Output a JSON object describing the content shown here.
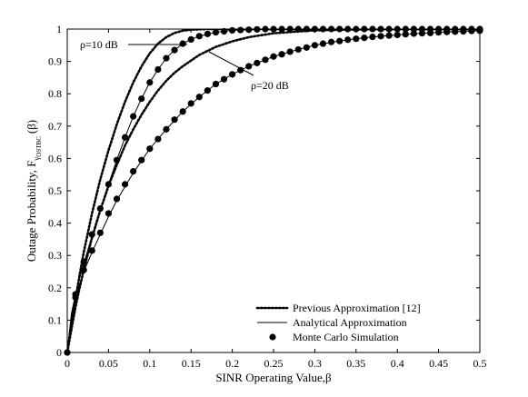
{
  "chart_data": {
    "type": "line",
    "xlabel": "SINR Operating Value,",
    "xlabel_symbol": "β",
    "ylabel": {
      "prefix": "Outage Probability, F",
      "sub_main": "γ",
      "sub_sub": "OSTBC",
      "suffix": "(β)"
    },
    "xlim": [
      0,
      0.5
    ],
    "ylim": [
      0,
      1
    ],
    "x_ticks": [
      0,
      0.05,
      0.1,
      0.15,
      0.2,
      0.25,
      0.3,
      0.35,
      0.4,
      0.45,
      0.5
    ],
    "x_tick_labels": [
      "0",
      "0.05",
      "0.1",
      "0.15",
      "0.2",
      "0.25",
      "0.3",
      "0.35",
      "0.4",
      "0.45",
      "0.5"
    ],
    "y_ticks": [
      0,
      0.1,
      0.2,
      0.3,
      0.4,
      0.5,
      0.6,
      0.7,
      0.8,
      0.9,
      1
    ],
    "y_tick_labels": [
      "0",
      "0.1",
      "0.2",
      "0.3",
      "0.4",
      "0.5",
      "0.6",
      "0.7",
      "0.8",
      "0.9",
      "1"
    ],
    "grid": false,
    "legend_position": "bottom-right",
    "legend": [
      {
        "label": "Previous Approximation [12]",
        "style": "dotted"
      },
      {
        "label": "Analytical Approximation",
        "style": "solid"
      },
      {
        "label": "Monte Carlo Simulation",
        "style": "markers"
      }
    ],
    "annotations": [
      {
        "text": "ρ=10 dB",
        "points_to": "left curve group"
      },
      {
        "text": "ρ=20 dB",
        "points_to": "right curve group"
      }
    ],
    "series": [
      {
        "style": "dotted",
        "group": "ρ=10 dB",
        "x": [
          0,
          0.005,
          0.01,
          0.015,
          0.02,
          0.03,
          0.04,
          0.05,
          0.06,
          0.07,
          0.08,
          0.09,
          0.1,
          0.11,
          0.12,
          0.13,
          0.14,
          0.15,
          0.17,
          0.2,
          0.25,
          0.3,
          0.4,
          0.5
        ],
        "y": [
          0,
          0.085,
          0.165,
          0.24,
          0.31,
          0.43,
          0.535,
          0.625,
          0.705,
          0.775,
          0.835,
          0.885,
          0.925,
          0.955,
          0.975,
          0.988,
          0.995,
          0.998,
          1,
          1,
          1,
          1,
          1,
          1
        ]
      },
      {
        "style": "dotted",
        "group": "ρ=20 dB",
        "x": [
          0,
          0.005,
          0.01,
          0.015,
          0.02,
          0.03,
          0.04,
          0.05,
          0.06,
          0.07,
          0.08,
          0.09,
          0.1,
          0.11,
          0.12,
          0.13,
          0.14,
          0.16,
          0.18,
          0.2,
          0.22,
          0.25,
          0.3,
          0.35,
          0.4,
          0.5
        ],
        "y": [
          0,
          0.07,
          0.14,
          0.2,
          0.255,
          0.355,
          0.44,
          0.515,
          0.58,
          0.64,
          0.69,
          0.735,
          0.775,
          0.81,
          0.84,
          0.865,
          0.885,
          0.92,
          0.945,
          0.962,
          0.975,
          0.987,
          0.996,
          0.999,
          1,
          1
        ]
      },
      {
        "style": "solid",
        "group": "ρ=10 dB",
        "x": [
          0,
          0.005,
          0.01,
          0.015,
          0.02,
          0.03,
          0.04,
          0.05,
          0.06,
          0.07,
          0.08,
          0.09,
          0.1,
          0.11,
          0.12,
          0.13,
          0.14,
          0.15,
          0.16,
          0.18,
          0.2,
          0.22,
          0.25,
          0.3,
          0.35,
          0.4,
          0.45,
          0.5
        ],
        "y": [
          0,
          0.12,
          0.18,
          0.23,
          0.275,
          0.36,
          0.44,
          0.52,
          0.595,
          0.665,
          0.73,
          0.785,
          0.835,
          0.875,
          0.91,
          0.935,
          0.955,
          0.968,
          0.978,
          0.99,
          0.996,
          0.998,
          1,
          1,
          1,
          1,
          1,
          1
        ]
      },
      {
        "style": "solid",
        "group": "ρ=20 dB",
        "x": [
          0,
          0.005,
          0.01,
          0.015,
          0.02,
          0.03,
          0.04,
          0.05,
          0.06,
          0.08,
          0.1,
          0.12,
          0.14,
          0.16,
          0.18,
          0.2,
          0.22,
          0.25,
          0.28,
          0.3,
          0.33,
          0.35,
          0.38,
          0.4,
          0.45,
          0.5
        ],
        "y": [
          0,
          0.11,
          0.165,
          0.21,
          0.25,
          0.31,
          0.365,
          0.42,
          0.47,
          0.555,
          0.63,
          0.69,
          0.745,
          0.79,
          0.83,
          0.86,
          0.885,
          0.915,
          0.937,
          0.95,
          0.963,
          0.97,
          0.978,
          0.982,
          0.99,
          0.995
        ]
      },
      {
        "style": "markers",
        "group": "ρ=10 dB",
        "x": [
          0,
          0.01,
          0.02,
          0.03,
          0.04,
          0.05,
          0.06,
          0.07,
          0.08,
          0.09,
          0.1,
          0.11,
          0.12,
          0.13,
          0.14,
          0.15,
          0.16,
          0.17,
          0.18,
          0.19,
          0.2,
          0.21,
          0.22,
          0.23,
          0.24,
          0.25,
          0.26,
          0.27,
          0.28,
          0.29,
          0.3,
          0.31,
          0.32,
          0.33,
          0.34,
          0.35,
          0.36,
          0.37,
          0.38,
          0.39,
          0.4,
          0.41,
          0.42,
          0.43,
          0.44,
          0.45,
          0.46,
          0.47,
          0.48,
          0.49,
          0.5
        ],
        "y": [
          0,
          0.18,
          0.28,
          0.365,
          0.445,
          0.52,
          0.595,
          0.665,
          0.73,
          0.785,
          0.835,
          0.875,
          0.91,
          0.935,
          0.955,
          0.968,
          0.978,
          0.985,
          0.99,
          0.993,
          0.996,
          0.997,
          0.998,
          0.999,
          1,
          1,
          1,
          1,
          1,
          1,
          1,
          1,
          1,
          1,
          1,
          1,
          1,
          1,
          1,
          1,
          1,
          1,
          1,
          1,
          1,
          1,
          1,
          1,
          1,
          1,
          1
        ]
      },
      {
        "style": "markers",
        "group": "ρ=20 dB",
        "x": [
          0,
          0.01,
          0.02,
          0.03,
          0.04,
          0.05,
          0.06,
          0.07,
          0.08,
          0.09,
          0.1,
          0.11,
          0.12,
          0.13,
          0.14,
          0.15,
          0.16,
          0.17,
          0.18,
          0.19,
          0.2,
          0.21,
          0.22,
          0.23,
          0.24,
          0.25,
          0.26,
          0.27,
          0.28,
          0.29,
          0.3,
          0.31,
          0.32,
          0.33,
          0.34,
          0.35,
          0.36,
          0.37,
          0.38,
          0.39,
          0.4,
          0.41,
          0.42,
          0.43,
          0.44,
          0.45,
          0.46,
          0.47,
          0.48,
          0.49,
          0.5
        ],
        "y": [
          0,
          0.17,
          0.255,
          0.315,
          0.37,
          0.43,
          0.475,
          0.52,
          0.56,
          0.595,
          0.63,
          0.66,
          0.69,
          0.72,
          0.745,
          0.77,
          0.79,
          0.81,
          0.83,
          0.845,
          0.86,
          0.873,
          0.885,
          0.895,
          0.905,
          0.915,
          0.922,
          0.93,
          0.937,
          0.943,
          0.95,
          0.955,
          0.96,
          0.963,
          0.967,
          0.97,
          0.973,
          0.976,
          0.978,
          0.98,
          0.982,
          0.984,
          0.986,
          0.987,
          0.988,
          0.99,
          0.991,
          0.992,
          0.993,
          0.994,
          0.995
        ]
      }
    ]
  }
}
